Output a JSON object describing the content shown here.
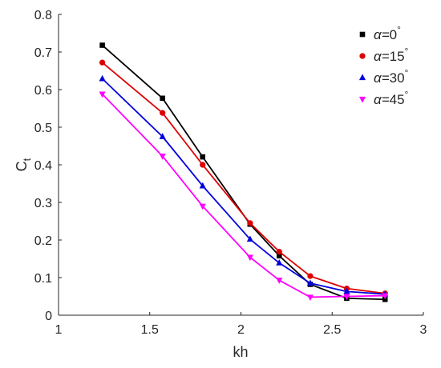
{
  "chart_data": {
    "type": "line",
    "xlabel": "kh",
    "ylabel": "C",
    "ylabel_sub": "t",
    "xlim": [
      1,
      3
    ],
    "ylim": [
      0,
      0.8
    ],
    "xticks": [
      1,
      1.5,
      2,
      2.5,
      3
    ],
    "xtick_labels": [
      "1",
      "1.5",
      "2",
      "2.5",
      "3"
    ],
    "yticks": [
      0,
      0.1,
      0.2,
      0.3,
      0.4,
      0.5,
      0.6,
      0.7,
      0.8
    ],
    "ytick_labels": [
      "0",
      "0.1",
      "0.2",
      "0.3",
      "0.4",
      "0.5",
      "0.6",
      "0.7",
      "0.8"
    ],
    "grid": false,
    "legend_position": "top-right",
    "x": [
      1.24,
      1.57,
      1.79,
      2.05,
      2.21,
      2.38,
      2.58,
      2.79
    ],
    "series": [
      {
        "name_prefix": "α=",
        "name_value": "0",
        "name_suffix": "°",
        "color": "#000000",
        "marker": "square",
        "values": [
          0.718,
          0.577,
          0.421,
          0.242,
          0.158,
          0.082,
          0.045,
          0.042
        ]
      },
      {
        "name_prefix": "α=",
        "name_value": "15",
        "name_suffix": "°",
        "color": "#dd0000",
        "marker": "circle",
        "values": [
          0.672,
          0.538,
          0.4,
          0.245,
          0.169,
          0.104,
          0.071,
          0.058
        ]
      },
      {
        "name_prefix": "α=",
        "name_value": "30",
        "name_suffix": "°",
        "color": "#0000dd",
        "marker": "triangle-up",
        "values": [
          0.629,
          0.475,
          0.344,
          0.202,
          0.139,
          0.085,
          0.063,
          0.056
        ]
      },
      {
        "name_prefix": "α=",
        "name_value": "45",
        "name_suffix": "°",
        "color": "#ff00ff",
        "marker": "triangle-down",
        "values": [
          0.588,
          0.423,
          0.29,
          0.154,
          0.093,
          0.048,
          0.05,
          0.052
        ]
      }
    ]
  }
}
